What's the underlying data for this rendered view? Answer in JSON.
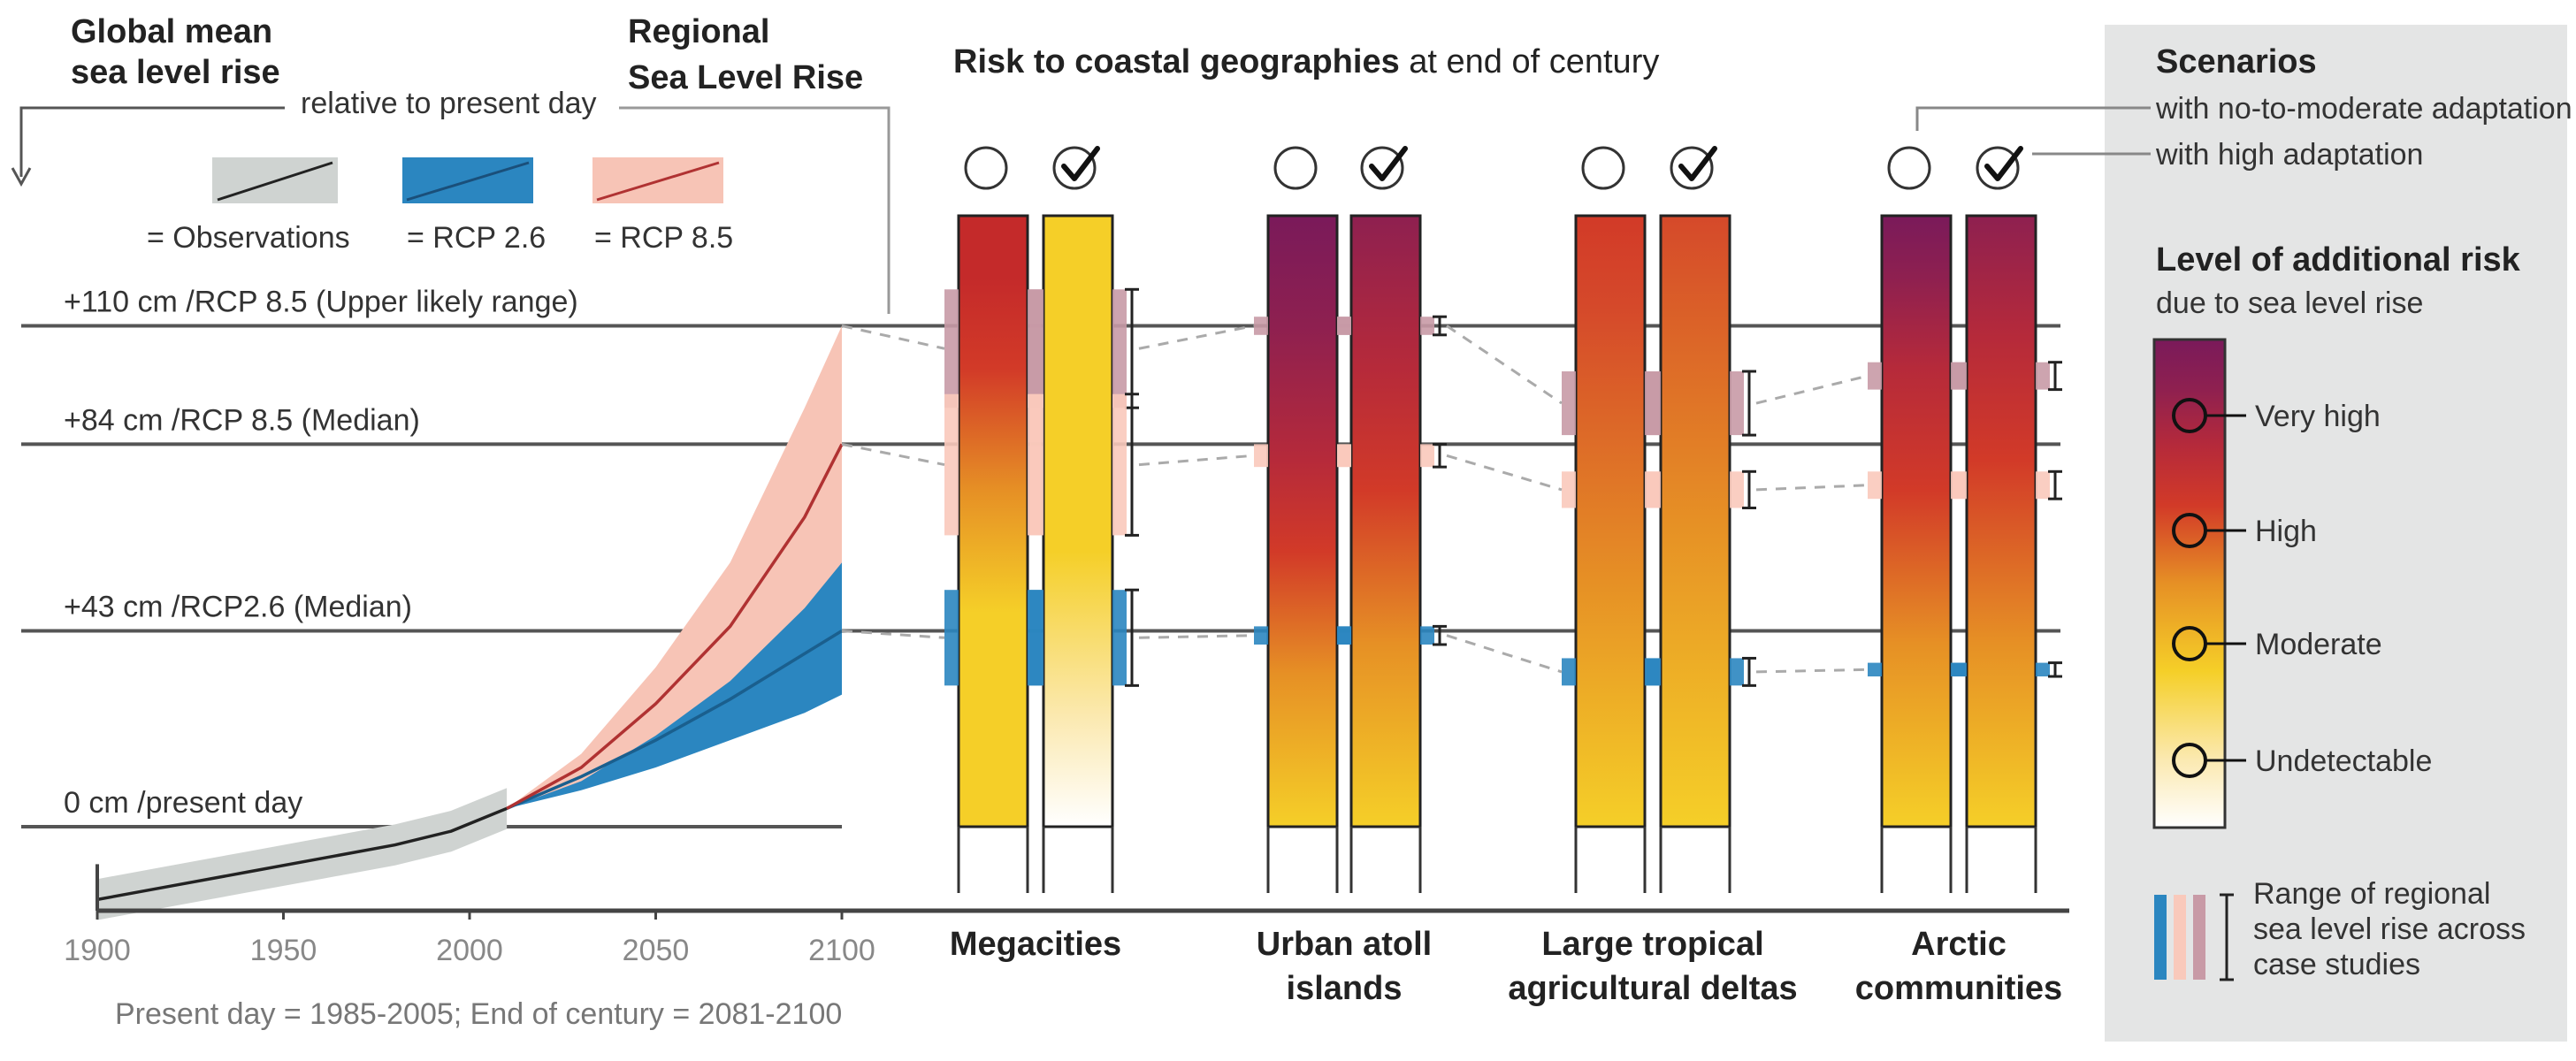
{
  "chart_data": {
    "type": "line",
    "title_left_1": "Global mean",
    "title_left_2": "sea level rise",
    "title_left_sub": "relative to present day",
    "title_regional_1": "Regional",
    "title_regional_2": "Sea Level Rise",
    "title_risk_bold": "Risk to coastal geographies",
    "title_risk_rest": " at end of century",
    "legend": {
      "observations": "= Observations",
      "rcp26": "= RCP 2.6",
      "rcp85": "= RCP 8.5"
    },
    "levels": [
      {
        "cm": 110,
        "label": "+110 cm /RCP 8.5 (Upper likely range)"
      },
      {
        "cm": 84,
        "label": "+84  cm /RCP 8.5 (Median)"
      },
      {
        "cm": 43,
        "label": "+43 cm /RCP2.6 (Median)"
      },
      {
        "cm": 0,
        "label": "0 cm /present day"
      }
    ],
    "x_ticks": [
      "1900",
      "1950",
      "2000",
      "2050",
      "2100"
    ],
    "xlim": [
      1900,
      2100
    ],
    "note": "Present day = 1985-2005; End of century = 2081-2100",
    "series": [
      {
        "name": "Observations",
        "color": "#222222",
        "band_color": "#cfd3d1",
        "x": [
          1900,
          1920,
          1940,
          1960,
          1980,
          1995,
          2010
        ],
        "y": [
          -16,
          -13,
          -10,
          -7,
          -4,
          -1,
          4
        ]
      },
      {
        "name": "RCP 2.6",
        "color": "#1a5f8e",
        "band_color": "#2b86c0",
        "x": [
          2010,
          2030,
          2050,
          2070,
          2090,
          2100
        ],
        "y": [
          4,
          11,
          19,
          28,
          38,
          43
        ],
        "low": [
          4,
          8,
          13,
          19,
          25,
          29
        ],
        "high": [
          4,
          14,
          25,
          37,
          51,
          58
        ]
      },
      {
        "name": "RCP 8.5",
        "color": "#b03232",
        "band_color": "#f7c4b6",
        "x": [
          2010,
          2030,
          2050,
          2070,
          2090,
          2100
        ],
        "y": [
          4,
          13,
          27,
          44,
          68,
          84
        ],
        "low": [
          4,
          10,
          20,
          32,
          48,
          58
        ],
        "high": [
          4,
          16,
          35,
          58,
          92,
          110
        ]
      }
    ],
    "geographies": [
      {
        "label": "Megacities",
        "label2": ""
      },
      {
        "label": "Urban atoll",
        "label2": "islands"
      },
      {
        "label": "Large tropical",
        "label2": "agricultural deltas"
      },
      {
        "label": "Arctic",
        "label2": "communities"
      }
    ],
    "risk_bars": [
      [
        [
          "#f5cf28",
          0
        ],
        [
          "#f5cf28",
          0.35
        ],
        [
          "#e69025",
          0.55
        ],
        [
          "#d23a28",
          0.75
        ],
        [
          "#c42a2a",
          0.9
        ],
        [
          "#c42a2a",
          1
        ]
      ],
      [
        [
          "#ffffff",
          0
        ],
        [
          "#fbe9b0",
          0.18
        ],
        [
          "#f5cf28",
          0.45
        ],
        [
          "#f5cf28",
          1
        ]
      ],
      [
        [
          "#f5cf28",
          0
        ],
        [
          "#e69025",
          0.25
        ],
        [
          "#d23a28",
          0.45
        ],
        [
          "#b62a3a",
          0.6
        ],
        [
          "#8e2050",
          0.82
        ],
        [
          "#7a1a5a",
          1
        ]
      ],
      [
        [
          "#f5cf28",
          0
        ],
        [
          "#e69025",
          0.3
        ],
        [
          "#d23a28",
          0.55
        ],
        [
          "#b62a3a",
          0.75
        ],
        [
          "#8e2050",
          1
        ]
      ],
      [
        [
          "#f5cf28",
          0
        ],
        [
          "#e69025",
          0.4
        ],
        [
          "#d5492a",
          0.85
        ],
        [
          "#d23a28",
          1
        ]
      ],
      [
        [
          "#f5cf28",
          0
        ],
        [
          "#e69025",
          0.5
        ],
        [
          "#d5492a",
          1
        ]
      ],
      [
        [
          "#f5cf28",
          0
        ],
        [
          "#e69025",
          0.3
        ],
        [
          "#d23a28",
          0.55
        ],
        [
          "#b62a3a",
          0.75
        ],
        [
          "#8e2050",
          0.9
        ],
        [
          "#7a1a5a",
          1
        ]
      ],
      [
        [
          "#f5cf28",
          0
        ],
        [
          "#e69025",
          0.3
        ],
        [
          "#d23a28",
          0.6
        ],
        [
          "#b62a3a",
          0.8
        ],
        [
          "#8e2050",
          1
        ]
      ]
    ],
    "regional_ranges": [
      [
        [
          92,
          118
        ],
        [
          64,
          95
        ],
        [
          31,
          52
        ]
      ],
      [
        [
          108,
          112
        ],
        [
          79,
          84
        ],
        [
          40,
          44
        ]
      ],
      [
        [
          86,
          100
        ],
        [
          70,
          78
        ],
        [
          31,
          37
        ]
      ],
      [
        [
          96,
          102
        ],
        [
          72,
          78
        ],
        [
          33,
          36
        ]
      ]
    ],
    "range_colors": [
      "#c89aa6",
      "#f9c9bb",
      "#2b86c0"
    ],
    "scenarios_title": "Scenarios",
    "scenario_no_adapt": "with no-to-moderate adaptation",
    "scenario_high_adapt": "with high adaptation",
    "risk_title": "Level of additional risk",
    "risk_sub": "due to sea level rise",
    "risk_levels": [
      "Very high",
      "High",
      "Moderate",
      "Undetectable"
    ],
    "range_note": [
      "Range of  regional",
      "sea level rise across",
      "case studies"
    ]
  }
}
